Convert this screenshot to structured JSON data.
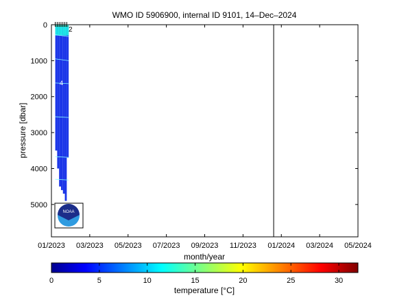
{
  "chart_data": {
    "type": "heatmap",
    "title": "WMO ID 5906900, internal ID 9101, 14–Dec–2024",
    "xlabel": "month/year",
    "ylabel": "pressure [dbar]",
    "x_ticks": [
      "01/2023",
      "03/2023",
      "05/2023",
      "07/2023",
      "09/2023",
      "11/2023",
      "01/2024",
      "03/2024",
      "05/2024"
    ],
    "x_range_months": [
      0,
      16
    ],
    "y_ticks": [
      0,
      1000,
      2000,
      3000,
      4000,
      5000
    ],
    "y_range_dbar": [
      0,
      5900
    ],
    "y_reversed": true,
    "marker_line_month": 11.6,
    "contour_labels": [
      "2",
      "4"
    ],
    "profile_columns": [
      {
        "month": 0.2,
        "max_pressure": 3500
      },
      {
        "month": 0.3,
        "max_pressure": 4000
      },
      {
        "month": 0.4,
        "max_pressure": 4500
      },
      {
        "month": 0.5,
        "max_pressure": 4600
      },
      {
        "month": 0.6,
        "max_pressure": 4700
      },
      {
        "month": 0.7,
        "max_pressure": 4900
      },
      {
        "month": 0.8,
        "max_pressure": 3700
      }
    ],
    "colorbar": {
      "label": "temperature [°C]",
      "range": [
        0,
        32
      ],
      "ticks": [
        0,
        5,
        10,
        15,
        20,
        25,
        30
      ]
    }
  },
  "logo": {
    "text": "NOAA"
  },
  "colors": {
    "deep_blue": "#1a35e8",
    "cyan": "#1ee6e6",
    "teal": "#35b8a8"
  }
}
